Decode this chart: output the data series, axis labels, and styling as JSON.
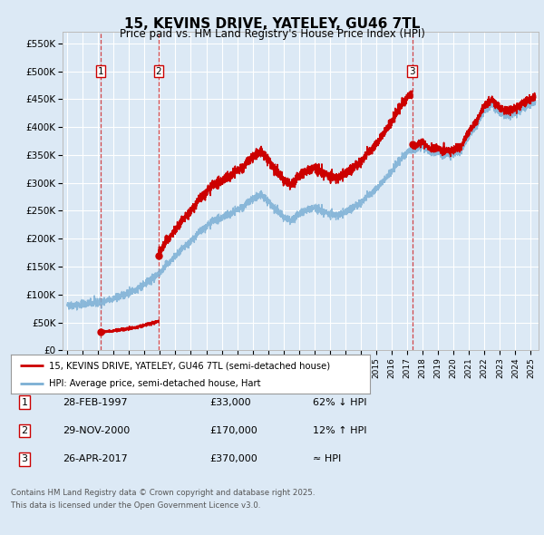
{
  "title": "15, KEVINS DRIVE, YATELEY, GU46 7TL",
  "subtitle": "Price paid vs. HM Land Registry's House Price Index (HPI)",
  "bg_color": "#dce9f5",
  "plot_bg_color": "#dce9f5",
  "ylabel_ticks": [
    "£0",
    "£50K",
    "£100K",
    "£150K",
    "£200K",
    "£250K",
    "£300K",
    "£350K",
    "£400K",
    "£450K",
    "£500K",
    "£550K"
  ],
  "ytick_values": [
    0,
    50000,
    100000,
    150000,
    200000,
    250000,
    300000,
    350000,
    400000,
    450000,
    500000,
    550000
  ],
  "ylim": [
    0,
    570000
  ],
  "xlim_start": 1994.7,
  "xlim_end": 2025.5,
  "xtick_years": [
    1995,
    1996,
    1997,
    1998,
    1999,
    2000,
    2001,
    2002,
    2003,
    2004,
    2005,
    2006,
    2007,
    2008,
    2009,
    2010,
    2011,
    2012,
    2013,
    2014,
    2015,
    2016,
    2017,
    2018,
    2019,
    2020,
    2021,
    2022,
    2023,
    2024,
    2025
  ],
  "sale_color": "#cc0000",
  "hpi_color": "#7bafd4",
  "vline_color": "#cc0000",
  "grid_color": "#ffffff",
  "sale1_date": 1997.15,
  "sale1_price": 33000,
  "sale2_date": 2000.92,
  "sale2_price": 170000,
  "sale3_date": 2017.32,
  "sale3_price": 370000,
  "footer_line1": "Contains HM Land Registry data © Crown copyright and database right 2025.",
  "footer_line2": "This data is licensed under the Open Government Licence v3.0.",
  "legend1": "15, KEVINS DRIVE, YATELEY, GU46 7TL (semi-detached house)",
  "legend2": "HPI: Average price, semi-detached house, Hart",
  "table_rows": [
    {
      "num": "1",
      "date": "28-FEB-1997",
      "price": "£33,000",
      "rel": "62% ↓ HPI"
    },
    {
      "num": "2",
      "date": "29-NOV-2000",
      "price": "£170,000",
      "rel": "12% ↑ HPI"
    },
    {
      "num": "3",
      "date": "26-APR-2017",
      "price": "£370,000",
      "rel": "≈ HPI"
    }
  ]
}
